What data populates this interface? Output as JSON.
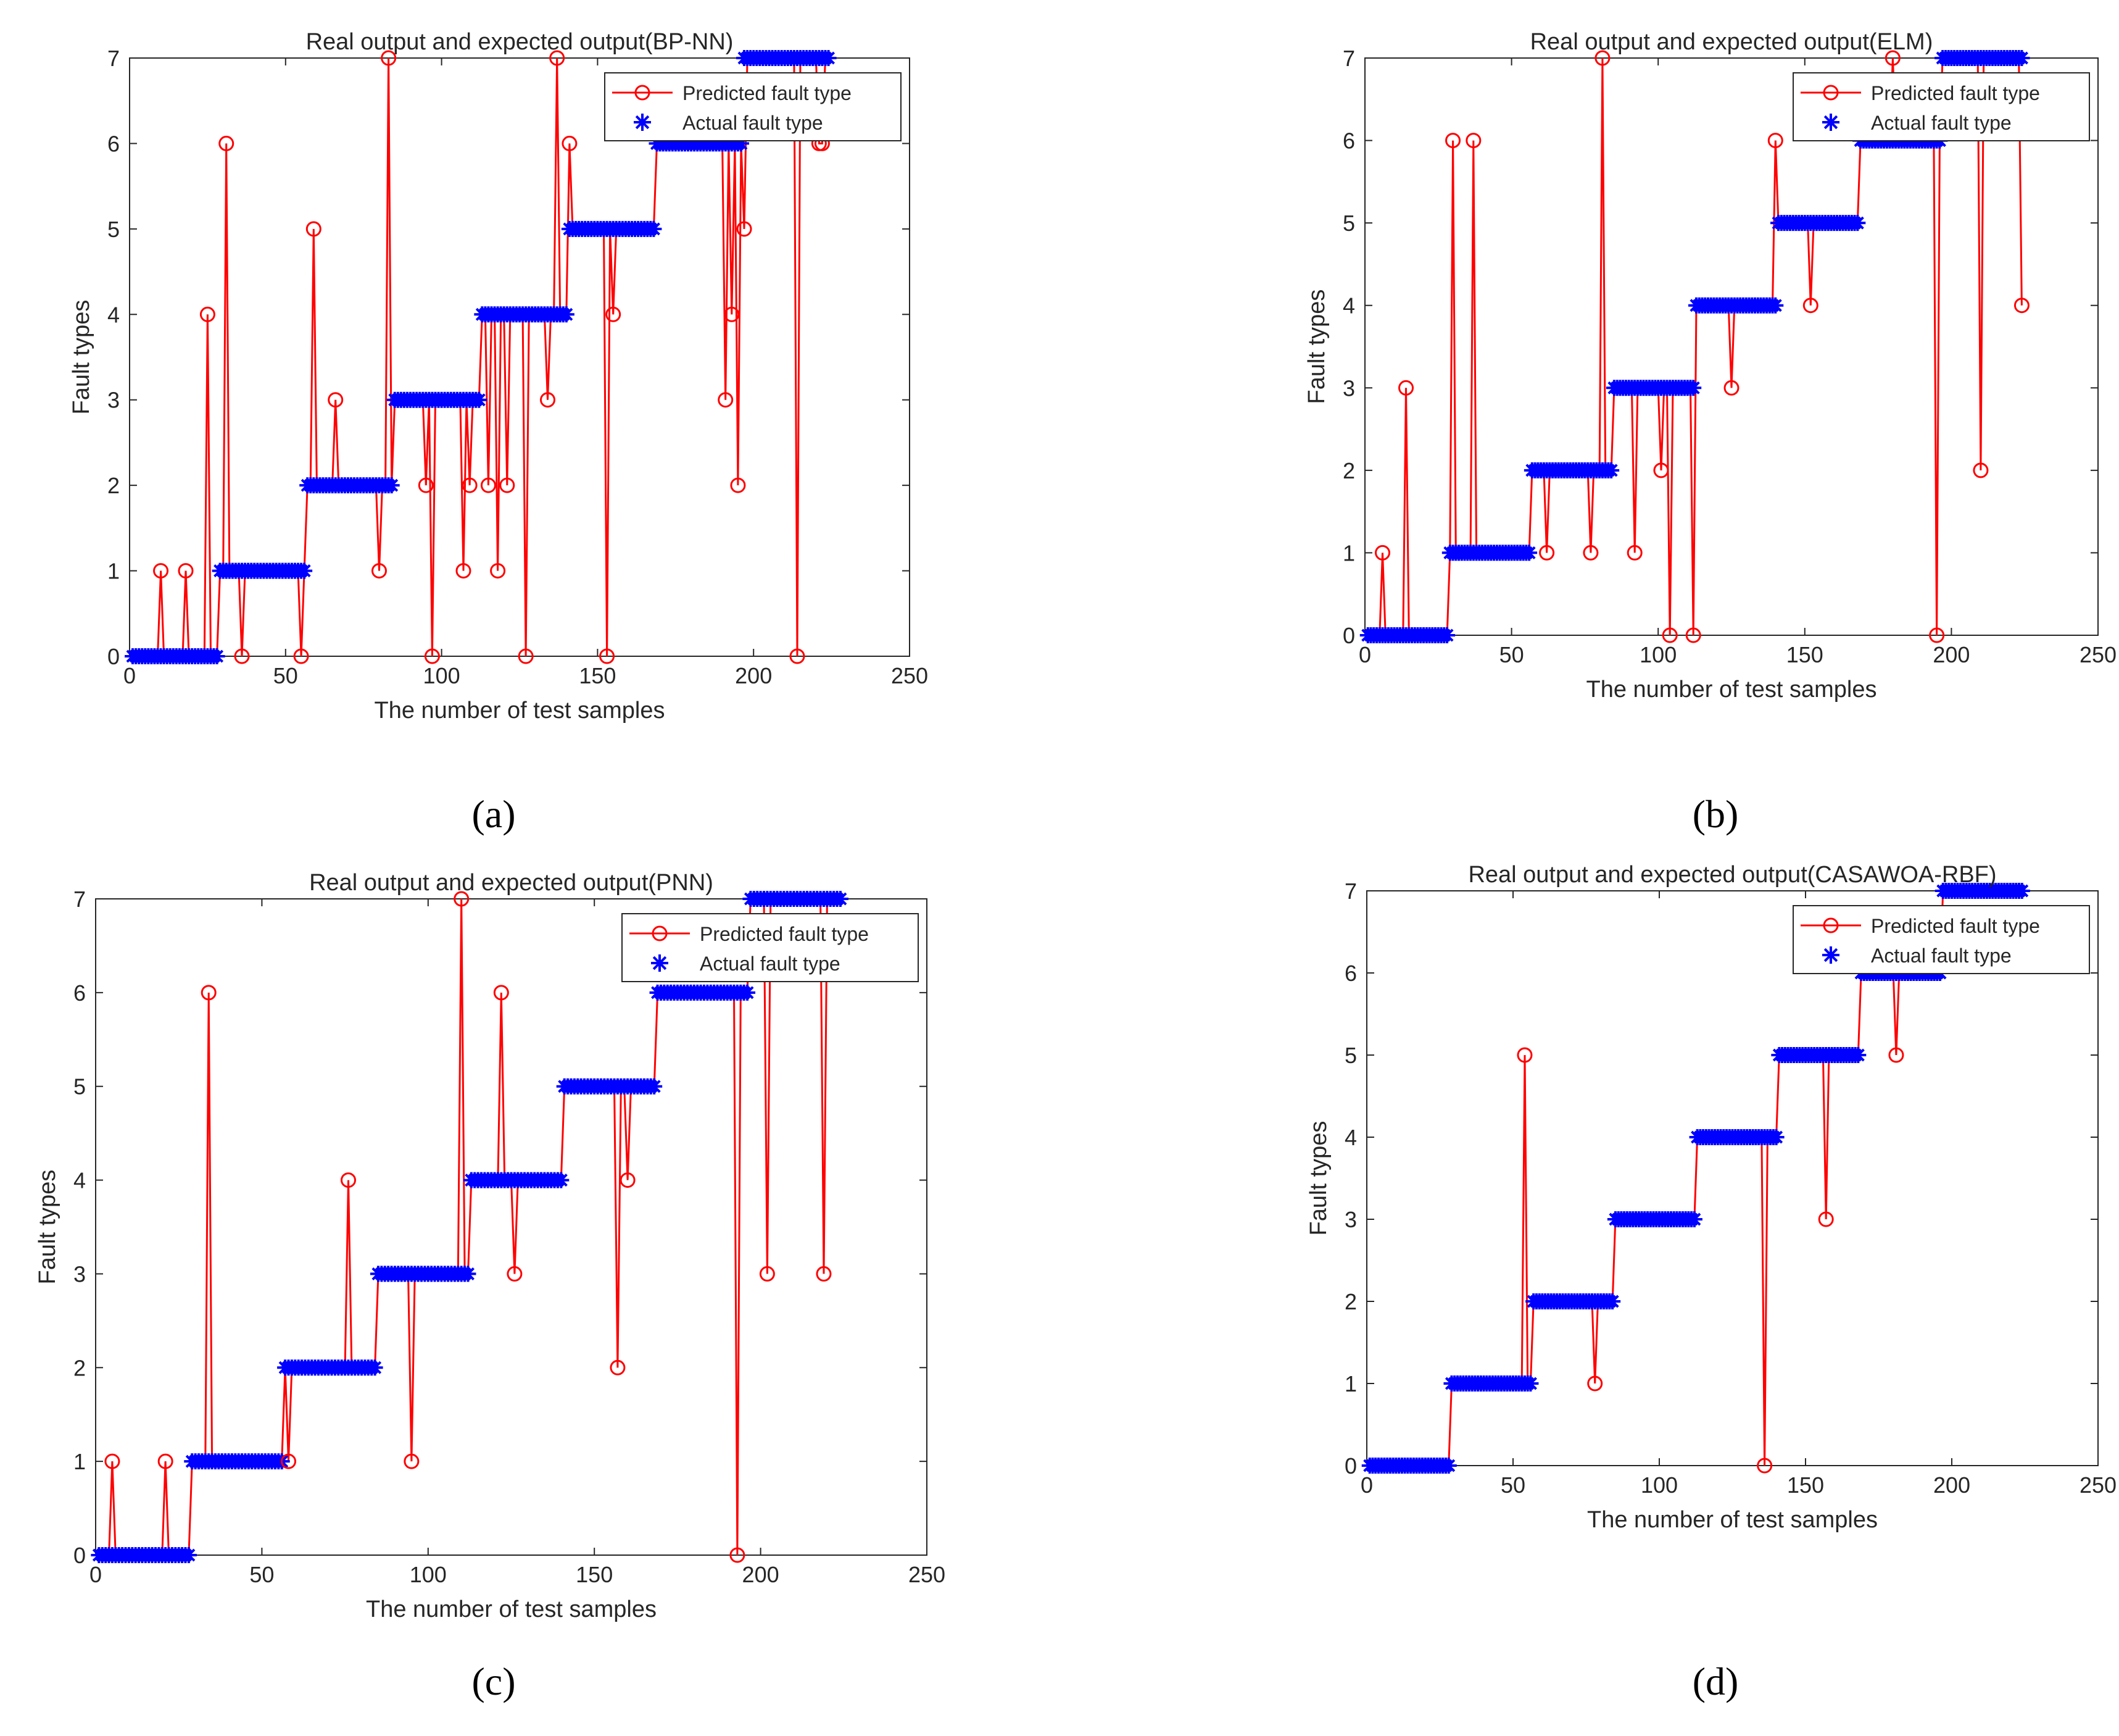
{
  "colors": {
    "predicted": "#ff0000",
    "actual": "#0000ff",
    "axis": "#262626",
    "background": "#ffffff"
  },
  "legend": {
    "predicted_label": "Predicted fault type",
    "actual_label": "Actual fault type"
  },
  "captions": [
    "(a)",
    "(b)",
    "(c)",
    "(d)"
  ],
  "chart_data": [
    {
      "type": "line",
      "title": "Real output and expected output(BP-NN)",
      "xlabel": "The number of test samples",
      "ylabel": "Fault types",
      "xlim": [
        0,
        250
      ],
      "ylim": [
        0,
        7
      ],
      "xticks": [
        0,
        50,
        100,
        150,
        200,
        250
      ],
      "yticks": [
        0,
        1,
        2,
        3,
        4,
        5,
        6,
        7
      ],
      "legend_position": "top-right",
      "class_ranges": [
        [
          1,
          28
        ],
        [
          29,
          56
        ],
        [
          57,
          84
        ],
        [
          85,
          112
        ],
        [
          113,
          140
        ],
        [
          141,
          168
        ],
        [
          169,
          196
        ],
        [
          197,
          224
        ]
      ],
      "series": [
        {
          "name": "Predicted fault type",
          "style": "red-line-circle",
          "errors": [
            [
              10,
              1
            ],
            [
              18,
              1
            ],
            [
              25,
              4
            ],
            [
              31,
              6
            ],
            [
              36,
              0
            ],
            [
              55,
              0
            ],
            [
              59,
              5
            ],
            [
              66,
              3
            ],
            [
              80,
              1
            ],
            [
              83,
              7
            ],
            [
              95,
              2
            ],
            [
              97,
              0
            ],
            [
              107,
              1
            ],
            [
              109,
              2
            ],
            [
              115,
              2
            ],
            [
              118,
              1
            ],
            [
              121,
              2
            ],
            [
              127,
              0
            ],
            [
              134,
              3
            ],
            [
              137,
              7
            ],
            [
              141,
              6
            ],
            [
              153,
              0
            ],
            [
              155,
              4
            ],
            [
              191,
              3
            ],
            [
              193,
              4
            ],
            [
              195,
              2
            ],
            [
              197,
              5
            ],
            [
              214,
              0
            ],
            [
              221,
              6
            ],
            [
              222,
              6
            ]
          ]
        },
        {
          "name": "Actual fault type",
          "style": "blue-star"
        }
      ]
    },
    {
      "type": "line",
      "title": "Real output and expected output(ELM)",
      "xlabel": "The number of test samples",
      "ylabel": "Fault types",
      "xlim": [
        0,
        250
      ],
      "ylim": [
        0,
        7
      ],
      "xticks": [
        0,
        50,
        100,
        150,
        200,
        250
      ],
      "yticks": [
        0,
        1,
        2,
        3,
        4,
        5,
        6,
        7
      ],
      "legend_position": "top-right",
      "class_ranges": [
        [
          1,
          28
        ],
        [
          29,
          56
        ],
        [
          57,
          84
        ],
        [
          85,
          112
        ],
        [
          113,
          140
        ],
        [
          141,
          168
        ],
        [
          169,
          196
        ],
        [
          197,
          224
        ]
      ],
      "series": [
        {
          "name": "Predicted fault type",
          "style": "red-line-circle",
          "errors": [
            [
              6,
              1
            ],
            [
              14,
              3
            ],
            [
              30,
              6
            ],
            [
              37,
              6
            ],
            [
              62,
              1
            ],
            [
              77,
              1
            ],
            [
              81,
              7
            ],
            [
              92,
              1
            ],
            [
              101,
              2
            ],
            [
              104,
              0
            ],
            [
              112,
              0
            ],
            [
              125,
              3
            ],
            [
              140,
              6
            ],
            [
              152,
              4
            ],
            [
              180,
              7
            ],
            [
              195,
              0
            ],
            [
              210,
              2
            ],
            [
              224,
              4
            ]
          ]
        },
        {
          "name": "Actual fault type",
          "style": "blue-star"
        }
      ]
    },
    {
      "type": "line",
      "title": "Real output and expected output(PNN)",
      "xlabel": "The number of test samples",
      "ylabel": "Fault types",
      "xlim": [
        0,
        250
      ],
      "ylim": [
        0,
        7
      ],
      "xticks": [
        0,
        50,
        100,
        150,
        200,
        250
      ],
      "yticks": [
        0,
        1,
        2,
        3,
        4,
        5,
        6,
        7
      ],
      "legend_position": "top-right",
      "class_ranges": [
        [
          1,
          28
        ],
        [
          29,
          56
        ],
        [
          57,
          84
        ],
        [
          85,
          112
        ],
        [
          113,
          140
        ],
        [
          141,
          168
        ],
        [
          169,
          196
        ],
        [
          197,
          224
        ]
      ],
      "series": [
        {
          "name": "Predicted fault type",
          "style": "red-line-circle",
          "errors": [
            [
              5,
              1
            ],
            [
              21,
              1
            ],
            [
              34,
              6
            ],
            [
              58,
              1
            ],
            [
              76,
              4
            ],
            [
              95,
              1
            ],
            [
              110,
              7
            ],
            [
              122,
              6
            ],
            [
              126,
              3
            ],
            [
              157,
              2
            ],
            [
              160,
              4
            ],
            [
              193,
              0
            ],
            [
              202,
              3
            ],
            [
              219,
              3
            ]
          ]
        },
        {
          "name": "Actual fault type",
          "style": "blue-star"
        }
      ]
    },
    {
      "type": "line",
      "title": "Real output and expected output(CASAWOA-RBF)",
      "xlabel": "The number of test samples",
      "ylabel": "Fault types",
      "xlim": [
        0,
        250
      ],
      "ylim": [
        0,
        7
      ],
      "xticks": [
        0,
        50,
        100,
        150,
        200,
        250
      ],
      "yticks": [
        0,
        1,
        2,
        3,
        4,
        5,
        6,
        7
      ],
      "legend_position": "top-right",
      "class_ranges": [
        [
          1,
          28
        ],
        [
          29,
          56
        ],
        [
          57,
          84
        ],
        [
          85,
          112
        ],
        [
          113,
          140
        ],
        [
          141,
          168
        ],
        [
          169,
          196
        ],
        [
          197,
          224
        ]
      ],
      "series": [
        {
          "name": "Predicted fault type",
          "style": "red-line-circle",
          "errors": [
            [
              54,
              5
            ],
            [
              78,
              1
            ],
            [
              136,
              0
            ],
            [
              157,
              3
            ],
            [
              181,
              5
            ]
          ]
        },
        {
          "name": "Actual fault type",
          "style": "blue-star"
        }
      ]
    }
  ]
}
